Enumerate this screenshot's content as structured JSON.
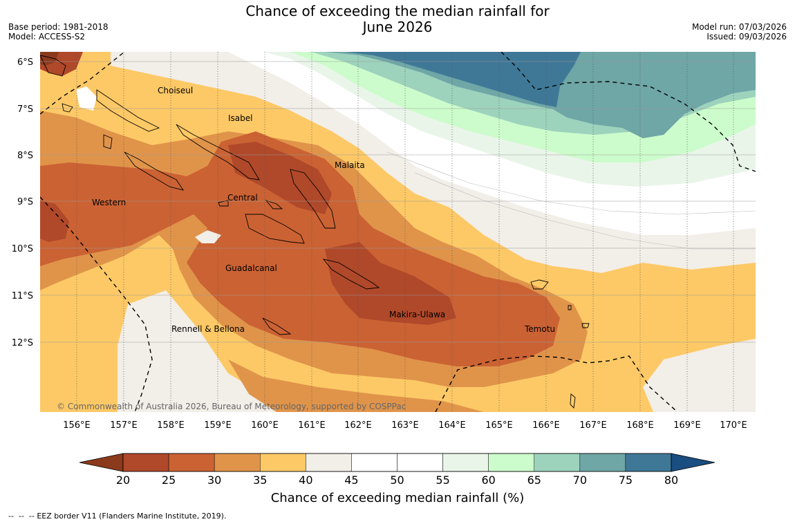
{
  "title": {
    "line1": "Chance of exceeding the median rainfall for",
    "line2": "June 2026"
  },
  "meta_left": {
    "base_period": "Base period: 1981-2018",
    "model": "Model: ACCESS-S2"
  },
  "meta_right": {
    "model_run": "Model run: 07/03/2026",
    "issued": "Issued: 09/03/2026"
  },
  "map": {
    "lat_labels": [
      "6°S",
      "7°S",
      "8°S",
      "9°S",
      "10°S",
      "11°S",
      "12°S"
    ],
    "lon_labels": [
      "156°E",
      "157°E",
      "158°E",
      "159°E",
      "160°E",
      "161°E",
      "162°E",
      "163°E",
      "164°E",
      "165°E",
      "166°E",
      "167°E",
      "168°E",
      "169°E",
      "170°E"
    ],
    "places": [
      "Choiseul",
      "Isabel",
      "Malaita",
      "Western",
      "Central",
      "Guadalcanal",
      "Makira-Ulawa",
      "Temotu",
      "Rennell & Bellona"
    ],
    "copyright": "© Commonwealth of Australia 2026, Bureau of Meteorology, supported by COSPPac"
  },
  "colorbar": {
    "ticks": [
      "20",
      "25",
      "30",
      "35",
      "40",
      "45",
      "50",
      "55",
      "60",
      "65",
      "70",
      "75",
      "80"
    ],
    "colors": [
      "#8b3a1c",
      "#b0482a",
      "#cb6233",
      "#e0944a",
      "#fdc966",
      "#f2eee8",
      "#ffffff",
      "#ffffff",
      "#eaf5ea",
      "#ccfccb",
      "#9dd3bd",
      "#6fa6a6",
      "#3f7897",
      "#1a4d80"
    ],
    "title": "Chance of exceeding median rainfall (%)"
  },
  "legend": {
    "eez": "EEZ border V11 (Flanders Marine Institute, 2019)."
  }
}
